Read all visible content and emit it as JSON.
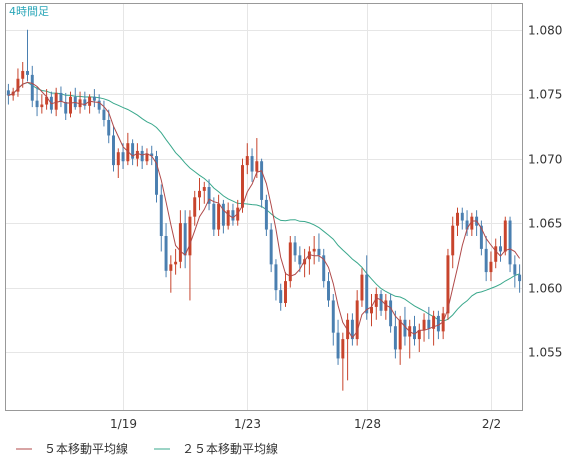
{
  "chart_data": {
    "type": "candlestick",
    "timeframe_label": "4時間足",
    "y_ticks": [
      "1.055",
      "1.060",
      "1.065",
      "1.070",
      "1.075",
      "1.080"
    ],
    "ylim": [
      1.0505,
      1.082
    ],
    "x_ticks": [
      {
        "label": "1/19",
        "index": 24
      },
      {
        "label": "1/23",
        "index": 50
      },
      {
        "label": "1/28",
        "index": 75
      },
      {
        "label": "2/2",
        "index": 101
      }
    ],
    "legend": [
      {
        "label": "５本移動平均線",
        "color": "#b04a4a"
      },
      {
        "label": "２５本移動平均線",
        "color": "#3aa88c"
      }
    ],
    "colors": {
      "up": "#c8442c",
      "down": "#4a7fb0",
      "ma5": "#b04a4a",
      "ma25": "#3aa88c",
      "grid": "#e6e6e6",
      "border": "#999999"
    },
    "candles": [
      [
        1.0753,
        1.0758,
        1.0742,
        1.0749
      ],
      [
        1.0749,
        1.0755,
        1.0745,
        1.0752
      ],
      [
        1.0752,
        1.077,
        1.0748,
        1.0762
      ],
      [
        1.0762,
        1.0775,
        1.0755,
        1.0768
      ],
      [
        1.0768,
        1.08,
        1.076,
        1.0765
      ],
      [
        1.0765,
        1.0772,
        1.074,
        1.0745
      ],
      [
        1.0745,
        1.0756,
        1.0733,
        1.074
      ],
      [
        1.074,
        1.075,
        1.0735,
        1.0742
      ],
      [
        1.0742,
        1.0754,
        1.0738,
        1.0748
      ],
      [
        1.0748,
        1.0752,
        1.0735,
        1.0738
      ],
      [
        1.0738,
        1.0755,
        1.0733,
        1.0751
      ],
      [
        1.0751,
        1.0756,
        1.074,
        1.0744
      ],
      [
        1.0744,
        1.0751,
        1.073,
        1.0735
      ],
      [
        1.0735,
        1.0752,
        1.0732,
        1.0748
      ],
      [
        1.0748,
        1.0755,
        1.0738,
        1.074
      ],
      [
        1.074,
        1.0752,
        1.0735,
        1.0746
      ],
      [
        1.0746,
        1.0752,
        1.0738,
        1.0741
      ],
      [
        1.0741,
        1.075,
        1.0735,
        1.0748
      ],
      [
        1.0748,
        1.0754,
        1.074,
        1.0745
      ],
      [
        1.0745,
        1.075,
        1.0735,
        1.0738
      ],
      [
        1.0738,
        1.0745,
        1.0725,
        1.073
      ],
      [
        1.073,
        1.0738,
        1.0712,
        1.0718
      ],
      [
        1.0718,
        1.0725,
        1.069,
        1.0695
      ],
      [
        1.0695,
        1.0708,
        1.0685,
        1.0705
      ],
      [
        1.0705,
        1.0712,
        1.0692,
        1.0698
      ],
      [
        1.0698,
        1.072,
        1.0695,
        1.0712
      ],
      [
        1.0712,
        1.0715,
        1.0695,
        1.07
      ],
      [
        1.07,
        1.0712,
        1.0694,
        1.0706
      ],
      [
        1.0706,
        1.071,
        1.0692,
        1.0698
      ],
      [
        1.0698,
        1.0708,
        1.0695,
        1.0704
      ],
      [
        1.0704,
        1.071,
        1.0695,
        1.0702
      ],
      [
        1.0702,
        1.0706,
        1.0666,
        1.0672
      ],
      [
        1.0672,
        1.068,
        1.0628,
        1.064
      ],
      [
        1.064,
        1.065,
        1.0608,
        1.0613
      ],
      [
        1.0613,
        1.0625,
        1.0596,
        1.0618
      ],
      [
        1.0618,
        1.063,
        1.061,
        1.062
      ],
      [
        1.062,
        1.066,
        1.0615,
        1.065
      ],
      [
        1.065,
        1.066,
        1.0615,
        1.0625
      ],
      [
        1.0625,
        1.066,
        1.059,
        1.0655
      ],
      [
        1.0655,
        1.0675,
        1.0648,
        1.067
      ],
      [
        1.067,
        1.0685,
        1.066,
        1.0675
      ],
      [
        1.0675,
        1.0682,
        1.0665,
        1.0678
      ],
      [
        1.0678,
        1.0684,
        1.066,
        1.0665
      ],
      [
        1.0665,
        1.067,
        1.064,
        1.0645
      ],
      [
        1.0645,
        1.0672,
        1.064,
        1.0665
      ],
      [
        1.0665,
        1.0668,
        1.0642,
        1.0648
      ],
      [
        1.0648,
        1.0666,
        1.0645,
        1.066
      ],
      [
        1.066,
        1.0665,
        1.0648,
        1.0652
      ],
      [
        1.0652,
        1.0668,
        1.0648,
        1.0662
      ],
      [
        1.0662,
        1.07,
        1.0658,
        1.0695
      ],
      [
        1.0695,
        1.0712,
        1.0688,
        1.0702
      ],
      [
        1.0702,
        1.0708,
        1.0682,
        1.069
      ],
      [
        1.069,
        1.0716,
        1.0685,
        1.0698
      ],
      [
        1.0698,
        1.07,
        1.0662,
        1.0668
      ],
      [
        1.0668,
        1.0672,
        1.064,
        1.0645
      ],
      [
        1.0645,
        1.065,
        1.0612,
        1.0618
      ],
      [
        1.0618,
        1.0622,
        1.059,
        1.0598
      ],
      [
        1.0598,
        1.0603,
        1.0582,
        1.0588
      ],
      [
        1.0588,
        1.0612,
        1.0585,
        1.0605
      ],
      [
        1.0605,
        1.064,
        1.06,
        1.0635
      ],
      [
        1.0635,
        1.064,
        1.062,
        1.0625
      ],
      [
        1.0625,
        1.0632,
        1.0612,
        1.0618
      ],
      [
        1.0618,
        1.063,
        1.0608,
        1.0622
      ],
      [
        1.0622,
        1.0632,
        1.061,
        1.0628
      ],
      [
        1.0628,
        1.064,
        1.0618,
        1.063
      ],
      [
        1.063,
        1.0642,
        1.062,
        1.0625
      ],
      [
        1.0625,
        1.063,
        1.06,
        1.0605
      ],
      [
        1.0605,
        1.0612,
        1.0585,
        1.059
      ],
      [
        1.059,
        1.0595,
        1.0555,
        1.0565
      ],
      [
        1.0565,
        1.0575,
        1.054,
        1.0545
      ],
      [
        1.0545,
        1.0565,
        1.052,
        1.056
      ],
      [
        1.056,
        1.058,
        1.0528,
        1.0575
      ],
      [
        1.0575,
        1.058,
        1.0555,
        1.056
      ],
      [
        1.056,
        1.0598,
        1.0555,
        1.059
      ],
      [
        1.059,
        1.0615,
        1.0585,
        1.061
      ],
      [
        1.061,
        1.0625,
        1.0575,
        1.058
      ],
      [
        1.058,
        1.0595,
        1.057,
        1.0585
      ],
      [
        1.0585,
        1.06,
        1.0575,
        1.0595
      ],
      [
        1.0595,
        1.0598,
        1.0578,
        1.0582
      ],
      [
        1.0582,
        1.0595,
        1.0575,
        1.059
      ],
      [
        1.059,
        1.0595,
        1.0565,
        1.057
      ],
      [
        1.057,
        1.0582,
        1.0545,
        1.0552
      ],
      [
        1.0552,
        1.0578,
        1.054,
        1.0575
      ],
      [
        1.0575,
        1.0585,
        1.0555,
        1.0562
      ],
      [
        1.0562,
        1.0575,
        1.0545,
        1.057
      ],
      [
        1.057,
        1.0578,
        1.0555,
        1.056
      ],
      [
        1.056,
        1.0572,
        1.055,
        1.0567
      ],
      [
        1.0567,
        1.058,
        1.0558,
        1.0575
      ],
      [
        1.0575,
        1.0585,
        1.056,
        1.0568
      ],
      [
        1.0568,
        1.0582,
        1.0555,
        1.0578
      ],
      [
        1.0578,
        1.0582,
        1.056,
        1.0566
      ],
      [
        1.0566,
        1.0585,
        1.056,
        1.058
      ],
      [
        1.058,
        1.063,
        1.0575,
        1.0625
      ],
      [
        1.0625,
        1.0655,
        1.0615,
        1.0648
      ],
      [
        1.0648,
        1.0662,
        1.064,
        1.0658
      ],
      [
        1.0658,
        1.0662,
        1.0645,
        1.0652
      ],
      [
        1.0652,
        1.066,
        1.064,
        1.0645
      ],
      [
        1.0645,
        1.0658,
        1.064,
        1.0655
      ],
      [
        1.0655,
        1.066,
        1.064,
        1.0648
      ],
      [
        1.0648,
        1.0652,
        1.0625,
        1.063
      ],
      [
        1.063,
        1.064,
        1.0605,
        1.0612
      ],
      [
        1.0612,
        1.0628,
        1.0605,
        1.062
      ],
      [
        1.062,
        1.0638,
        1.0615,
        1.0632
      ],
      [
        1.0632,
        1.064,
        1.062,
        1.0628
      ],
      [
        1.0628,
        1.0655,
        1.0625,
        1.0652
      ],
      [
        1.0652,
        1.0655,
        1.0612,
        1.0618
      ],
      [
        1.0618,
        1.0625,
        1.06,
        1.061
      ],
      [
        1.061,
        1.0618,
        1.0596,
        1.0605
      ]
    ]
  }
}
